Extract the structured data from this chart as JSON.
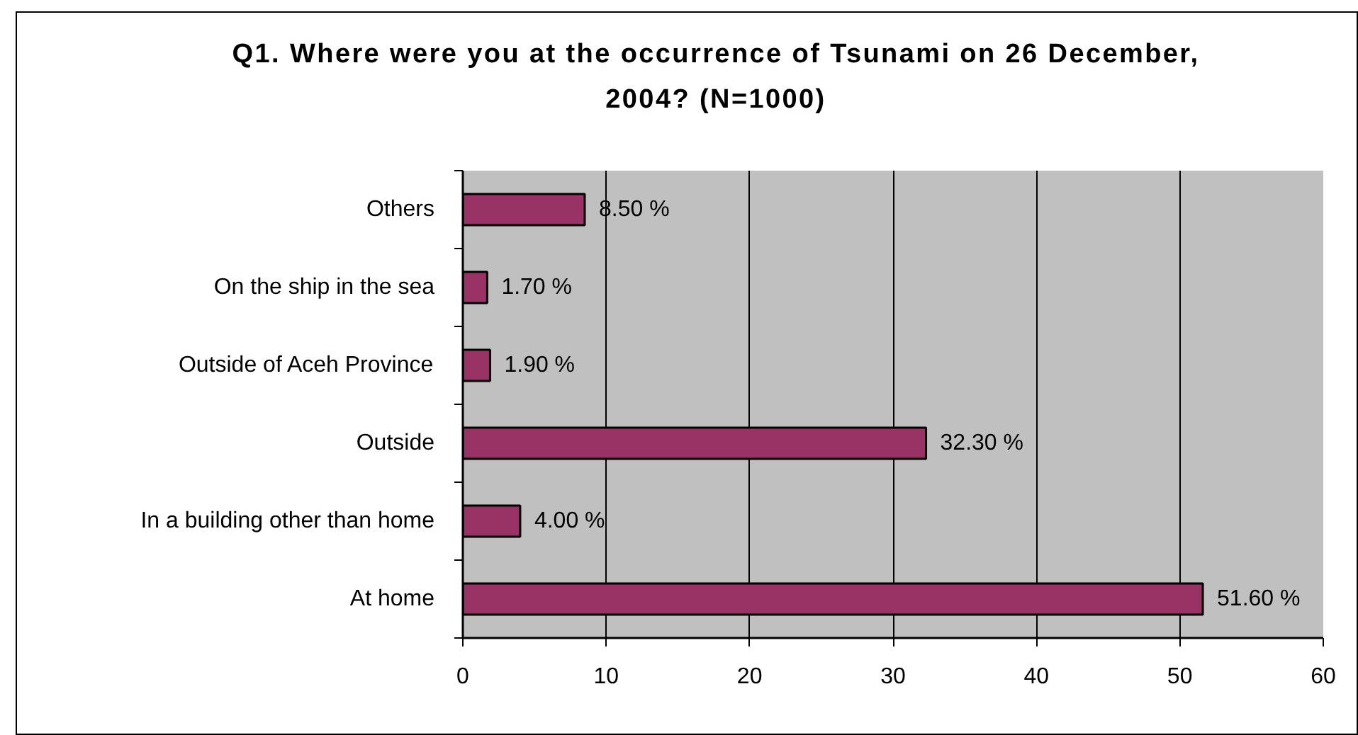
{
  "chart_data": {
    "type": "bar",
    "orientation": "horizontal",
    "title": "Q1. Where were you at the occurrence of Tsunami on 26 December, 2004?  (N=1000)",
    "categories": [
      "Others",
      "On the ship in the sea",
      "Outside of Aceh Province",
      "Outside",
      "In a building other than home",
      "At home"
    ],
    "values": [
      8.5,
      1.7,
      1.9,
      32.3,
      4.0,
      51.6
    ],
    "value_labels": [
      "8.50 %",
      "1.70 %",
      "1.90 %",
      "32.30 %",
      "4.00 %",
      "51.60 %"
    ],
    "color": "#993366",
    "xlim": [
      0,
      60
    ],
    "xticks": [
      0,
      10,
      20,
      30,
      40,
      50,
      60
    ],
    "grid": "x"
  }
}
